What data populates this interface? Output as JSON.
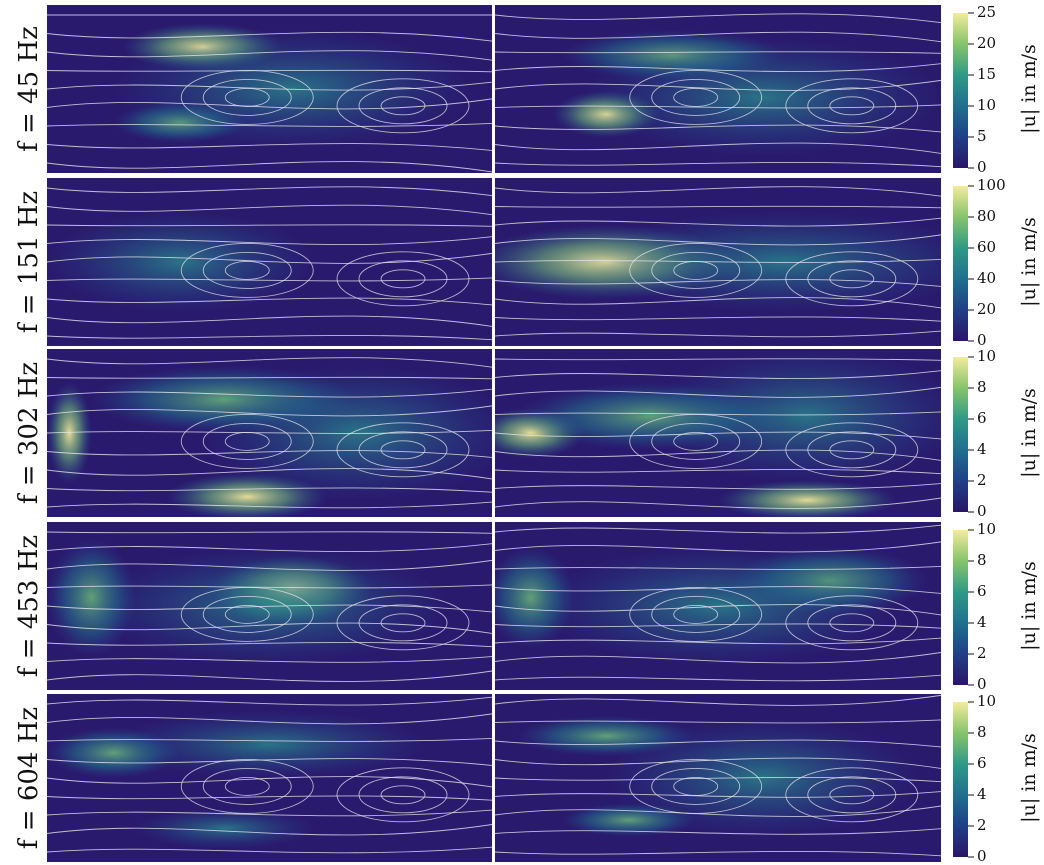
{
  "rows": [
    {
      "label": "f = 45 Hz",
      "colorbar": {
        "label": "|u| in m/s",
        "lim": [
          0,
          25
        ],
        "ticks": [
          0,
          5,
          10,
          15,
          20,
          25
        ]
      }
    },
    {
      "label": "f = 151 Hz",
      "colorbar": {
        "label": "|u| in m/s",
        "lim": [
          0,
          100
        ],
        "ticks": [
          0,
          20,
          40,
          60,
          80,
          100
        ]
      }
    },
    {
      "label": "f = 302 Hz",
      "colorbar": {
        "label": "|u| in m/s",
        "lim": [
          0,
          10
        ],
        "ticks": [
          0,
          2,
          4,
          6,
          8,
          10
        ]
      }
    },
    {
      "label": "f = 453 Hz",
      "colorbar": {
        "label": "|u| in m/s",
        "lim": [
          0,
          10
        ],
        "ticks": [
          0,
          2,
          4,
          6,
          8,
          10
        ]
      }
    },
    {
      "label": "f = 604 Hz",
      "colorbar": {
        "label": "|u| in m/s",
        "lim": [
          0,
          10
        ],
        "ticks": [
          0,
          2,
          4,
          6,
          8,
          10
        ]
      }
    }
  ]
}
